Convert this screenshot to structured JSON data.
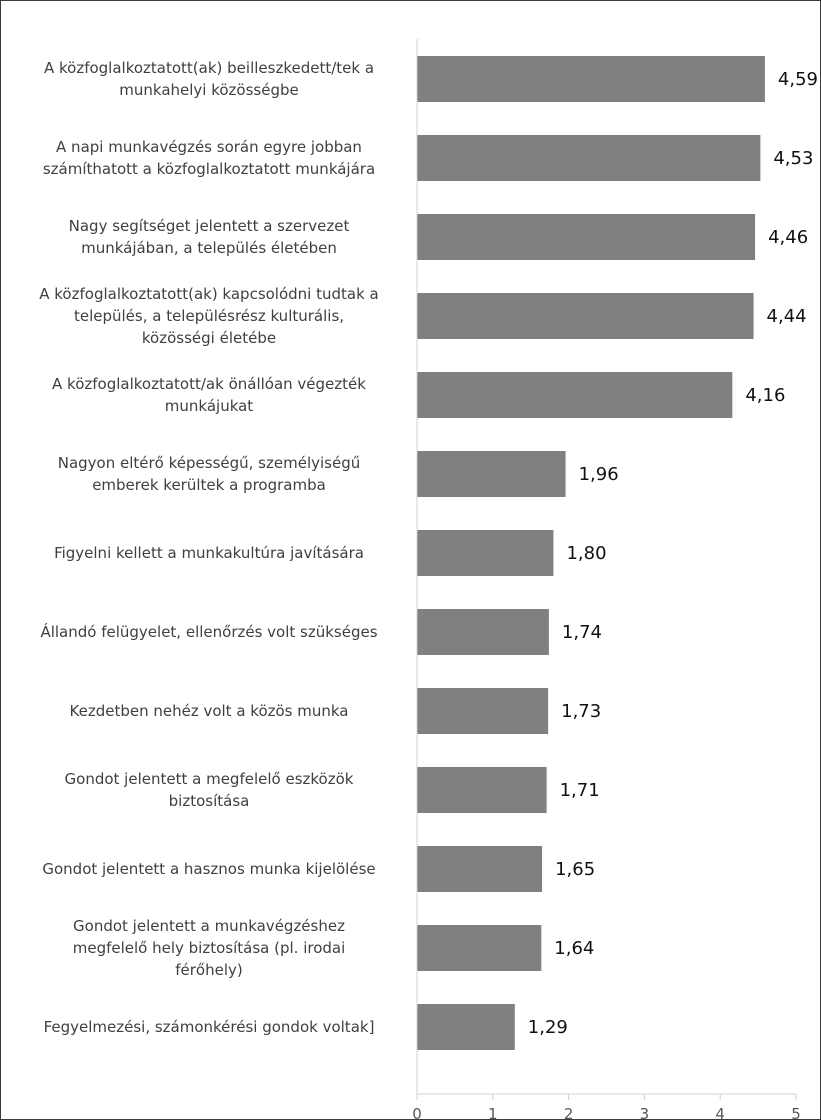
{
  "chart_data": {
    "type": "bar",
    "orientation": "horizontal",
    "title": "",
    "xlabel": "",
    "ylabel": "",
    "xlim": [
      0,
      5
    ],
    "ticks": [
      "0",
      "1",
      "2",
      "3",
      "4",
      "5"
    ],
    "grid": false,
    "legend": "none",
    "bar_color": "#808080",
    "categories": [
      [
        "A közfoglalkoztatott(ak) beilleszkedett/tek a",
        "munkahelyi közösségbe"
      ],
      [
        "A napi munkavégzés során egyre jobban",
        "számíthatott a közfoglalkoztatott munkájára"
      ],
      [
        "Nagy segítséget jelentett a szervezet",
        "munkájában, a település életében"
      ],
      [
        "A közfoglalkoztatott(ak) kapcsolódni tudtak a",
        "település, a településrész kulturális,",
        "közösségi életébe"
      ],
      [
        "A közfoglalkoztatott/ak önállóan végezték",
        "munkájukat"
      ],
      [
        "Nagyon eltérő képességű, személyiségű",
        "emberek kerültek a programba"
      ],
      [
        "Figyelni kellett a munkakultúra javítására"
      ],
      [
        "Állandó felügyelet, ellenőrzés volt szükséges"
      ],
      [
        "Kezdetben nehéz volt a közös munka"
      ],
      [
        "Gondot jelentett a megfelelő eszközök",
        "biztosítása"
      ],
      [
        "Gondot jelentett a hasznos munka kijelölése"
      ],
      [
        "Gondot jelentett a munkavégzéshez",
        "megfelelő hely biztosítása (pl. irodai",
        "férőhely)"
      ],
      [
        "Fegyelmezési, számonkérési gondok voltak]"
      ]
    ],
    "values": [
      4.59,
      4.53,
      4.46,
      4.44,
      4.16,
      1.96,
      1.8,
      1.74,
      1.73,
      1.71,
      1.65,
      1.64,
      1.29
    ],
    "value_labels": [
      "4,59",
      "4,53",
      "4,46",
      "4,44",
      "4,16",
      "1,96",
      "1,80",
      "1,74",
      "1,73",
      "1,71",
      "1,65",
      "1,64",
      "1,29"
    ]
  }
}
